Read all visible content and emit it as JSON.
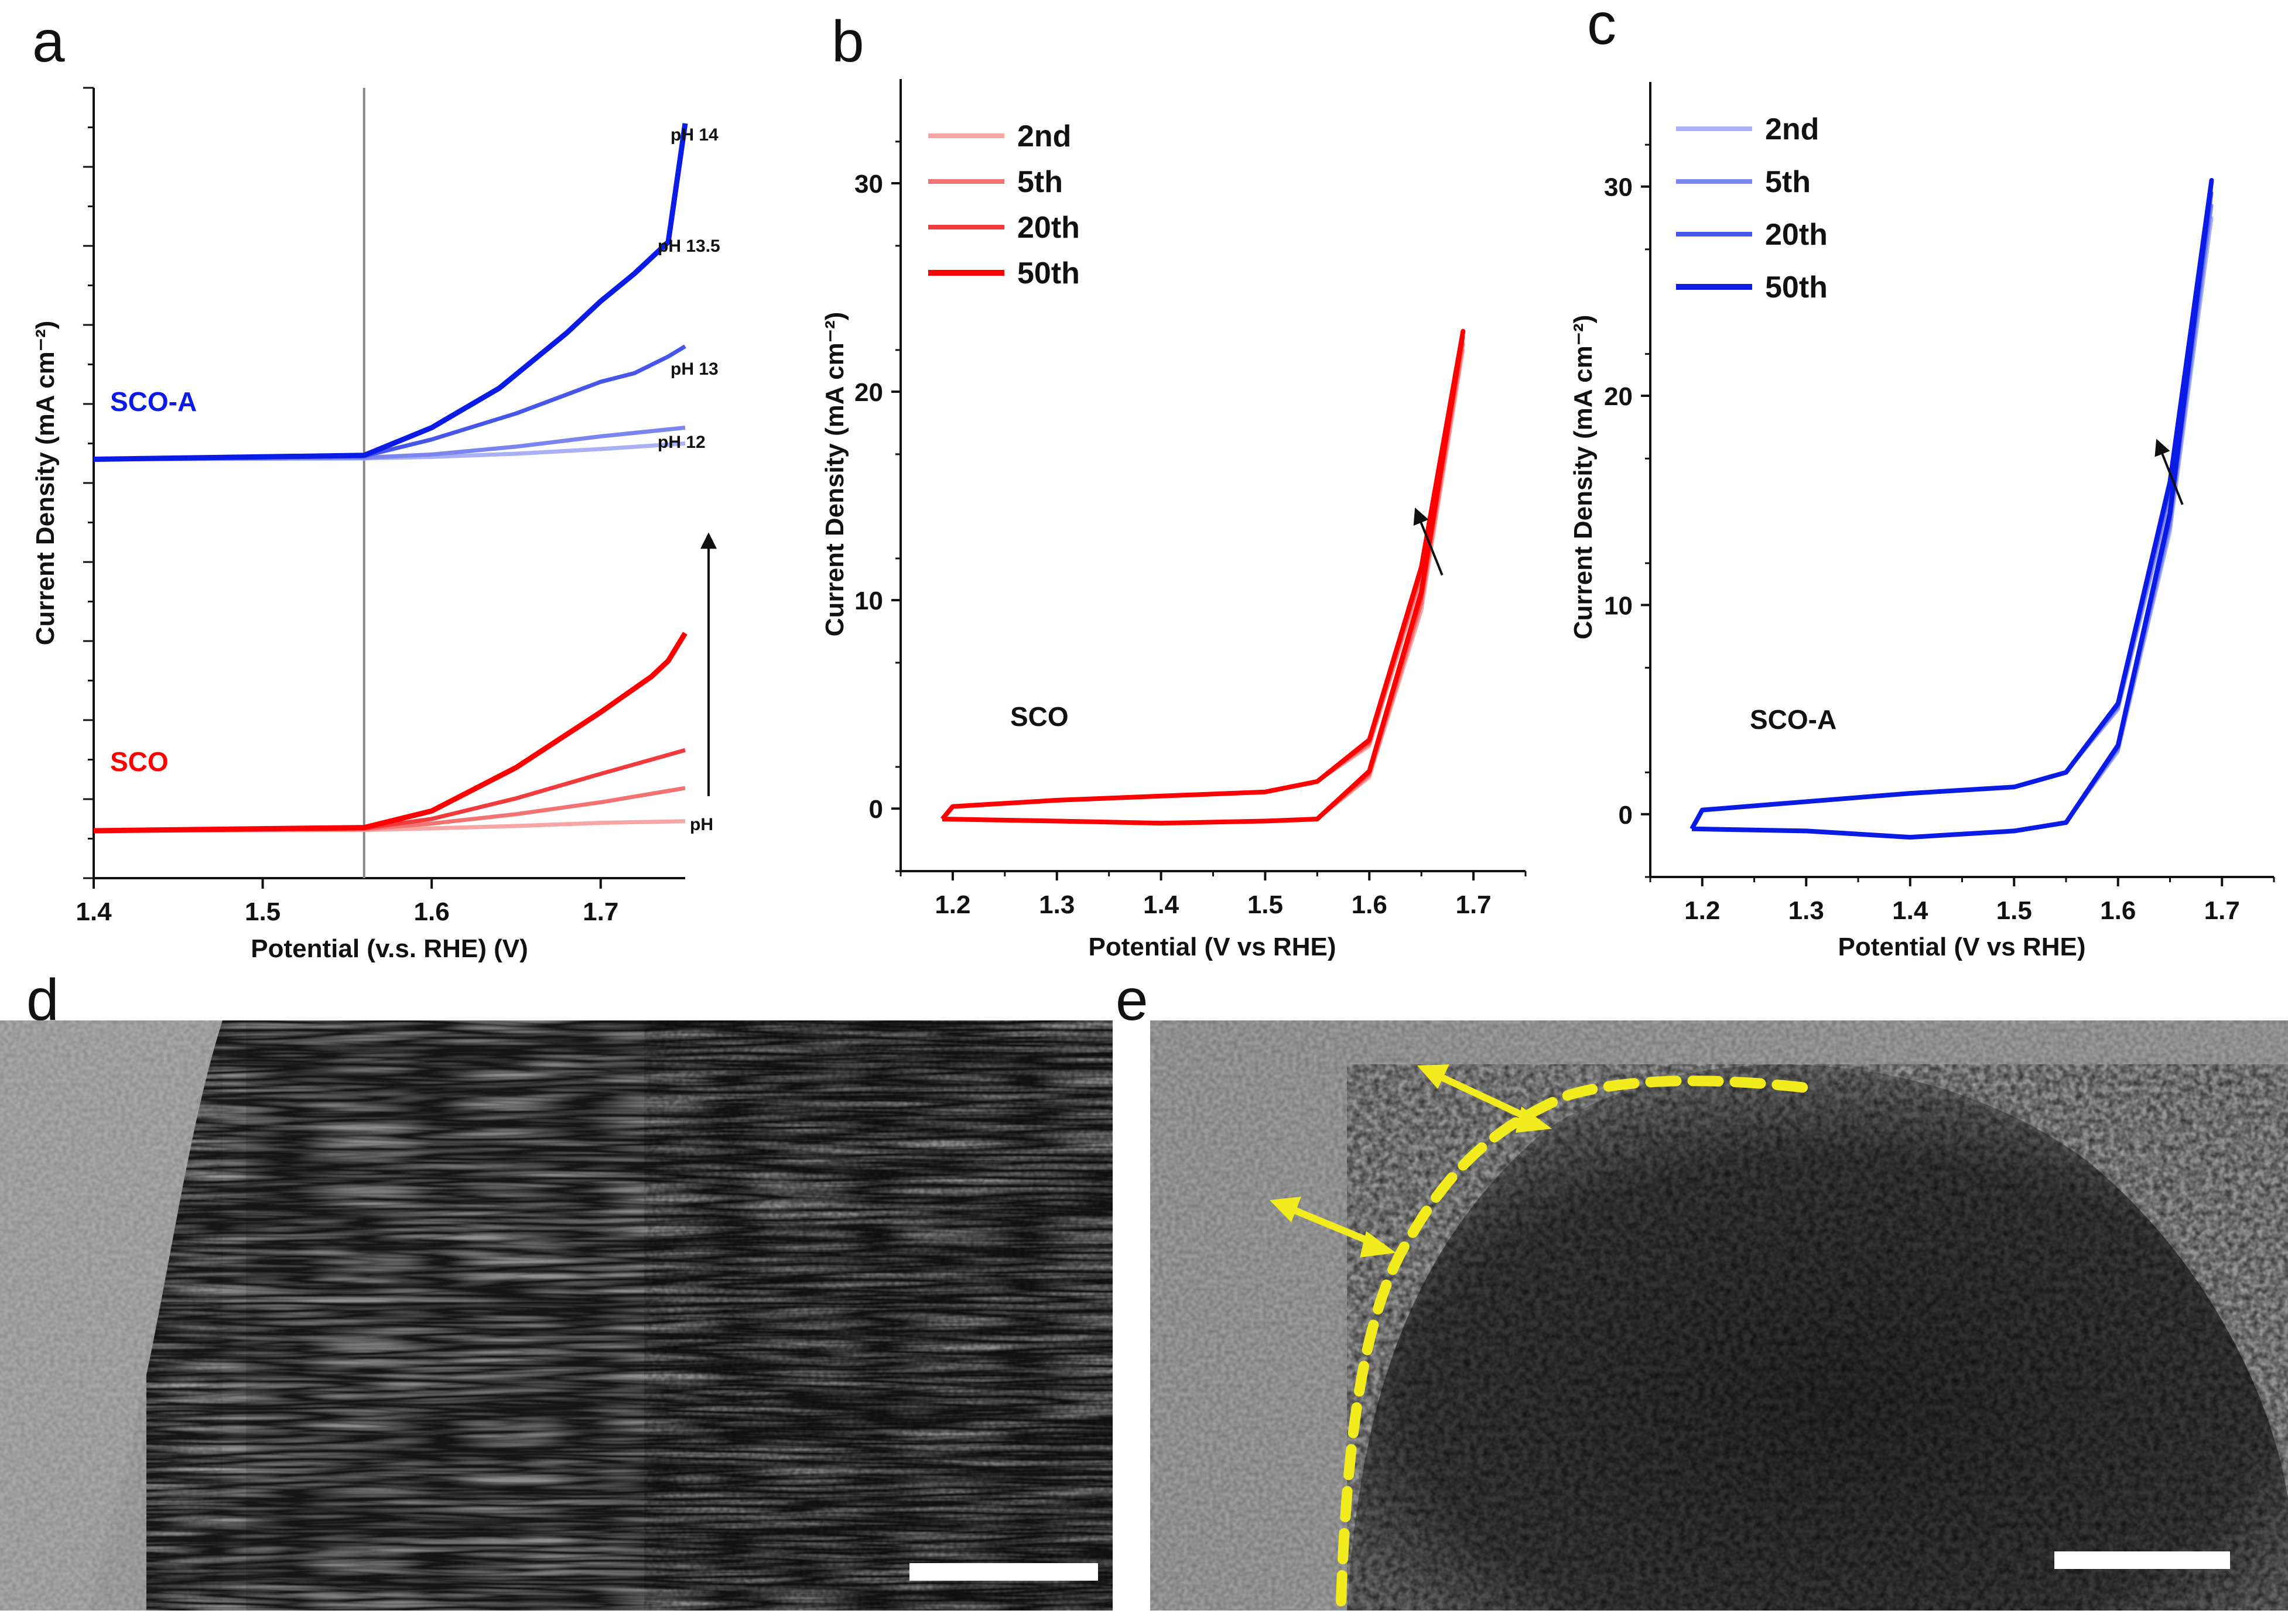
{
  "panel_labels": [
    "a",
    "b",
    "c",
    "d",
    "e"
  ],
  "colors": {
    "sco": "#ff0000",
    "sco_a": "#0a1be6",
    "sco_shades": [
      "#f7a5a5",
      "#f57272",
      "#f23a3a",
      "#ff0000"
    ],
    "sco_a_shades": [
      "#a9b0f5",
      "#7b85ef",
      "#4655ea",
      "#0a1be6"
    ],
    "dashed_boundary": "#f2ec1e",
    "scale_bar": "#ffffff"
  },
  "chart_data": [
    {
      "panel": "a",
      "type": "line",
      "xlabel": "Potential (v.s. RHE) (V)",
      "ylabel": "Current Density (mA cm⁻²)",
      "xlim": [
        1.4,
        1.75
      ],
      "xticks": [
        "1.4",
        "1.5",
        "1.6",
        "1.7"
      ],
      "ylim": [
        0,
        100
      ],
      "reference_line_x": 1.56,
      "groups": [
        {
          "name": "SCO-A",
          "baseline": 53,
          "series": [
            {
              "name": "pH 12",
              "x": [
                1.4,
                1.56,
                1.6,
                1.65,
                1.7,
                1.75
              ],
              "y": [
                53,
                53.1,
                53.3,
                53.7,
                54.3,
                55
              ]
            },
            {
              "name": "pH 13",
              "x": [
                1.4,
                1.56,
                1.6,
                1.65,
                1.7,
                1.75
              ],
              "y": [
                53,
                53.2,
                53.6,
                54.6,
                55.9,
                57
              ]
            },
            {
              "name": "pH 13.5",
              "x": [
                1.4,
                1.56,
                1.6,
                1.65,
                1.7,
                1.72,
                1.74,
                1.75
              ],
              "y": [
                53,
                53.4,
                55.5,
                58.8,
                62.8,
                63.9,
                66,
                67.3
              ]
            },
            {
              "name": "pH 14",
              "x": [
                1.4,
                1.56,
                1.6,
                1.64,
                1.68,
                1.7,
                1.72,
                1.73,
                1.74,
                1.75
              ],
              "y": [
                53,
                53.5,
                57,
                62,
                69,
                73,
                76.5,
                78.5,
                80.5,
                95.5
              ]
            }
          ]
        },
        {
          "name": "SCO",
          "baseline": 6,
          "series": [
            {
              "name": "pH 12",
              "x": [
                1.4,
                1.56,
                1.6,
                1.65,
                1.7,
                1.75
              ],
              "y": [
                6,
                6.1,
                6.3,
                6.6,
                7,
                7.2
              ]
            },
            {
              "name": "pH 13",
              "x": [
                1.4,
                1.56,
                1.6,
                1.65,
                1.7,
                1.75
              ],
              "y": [
                6,
                6.2,
                6.9,
                8.1,
                9.6,
                11.4
              ]
            },
            {
              "name": "pH 13.5",
              "x": [
                1.4,
                1.56,
                1.6,
                1.65,
                1.7,
                1.75
              ],
              "y": [
                6,
                6.3,
                7.5,
                10.1,
                13.2,
                16.2
              ]
            },
            {
              "name": "pH 14",
              "x": [
                1.4,
                1.56,
                1.6,
                1.65,
                1.7,
                1.72,
                1.73,
                1.74,
                1.75
              ],
              "y": [
                6,
                6.4,
                8.5,
                14,
                21,
                24,
                25.5,
                27.5,
                31
              ]
            }
          ]
        }
      ],
      "annotations": {
        "ph_labels": [
          "pH 14",
          "pH 13.5",
          "pH 13",
          "pH 12"
        ],
        "arrow_label": "pH"
      }
    },
    {
      "panel": "b",
      "type": "line",
      "sample": "SCO",
      "xlabel": "Potential (V vs RHE)",
      "ylabel": "Current Density (mA cm⁻²)",
      "xlim": [
        1.15,
        1.75
      ],
      "ylim": [
        -3,
        35
      ],
      "xticks": [
        "1.2",
        "1.3",
        "1.4",
        "1.5",
        "1.6",
        "1.7"
      ],
      "yticks": [
        "0",
        "10",
        "20",
        "30"
      ],
      "legend": [
        "2nd",
        "5th",
        "20th",
        "50th"
      ],
      "series": [
        {
          "name": "2nd",
          "x": [
            1.19,
            1.3,
            1.4,
            1.5,
            1.55,
            1.6,
            1.65,
            1.69,
            1.65,
            1.6,
            1.55,
            1.5,
            1.4,
            1.3,
            1.2,
            1.19
          ],
          "y": [
            -0.5,
            -0.6,
            -0.7,
            -0.6,
            -0.5,
            1.5,
            9.5,
            22,
            11,
            3,
            1.3,
            0.8,
            0.6,
            0.4,
            0.1,
            -0.5
          ]
        },
        {
          "name": "5th",
          "x": [
            1.19,
            1.3,
            1.4,
            1.5,
            1.55,
            1.6,
            1.65,
            1.69,
            1.65,
            1.6,
            1.55,
            1.5,
            1.4,
            1.3,
            1.2,
            1.19
          ],
          "y": [
            -0.5,
            -0.6,
            -0.7,
            -0.6,
            -0.5,
            1.6,
            9.8,
            22.3,
            11.2,
            3.1,
            1.3,
            0.8,
            0.6,
            0.4,
            0.1,
            -0.5
          ]
        },
        {
          "name": "20th",
          "x": [
            1.19,
            1.3,
            1.4,
            1.5,
            1.55,
            1.6,
            1.65,
            1.69,
            1.65,
            1.6,
            1.55,
            1.5,
            1.4,
            1.3,
            1.2,
            1.19
          ],
          "y": [
            -0.5,
            -0.6,
            -0.7,
            -0.6,
            -0.5,
            1.7,
            10.1,
            22.6,
            11.4,
            3.2,
            1.3,
            0.8,
            0.6,
            0.4,
            0.1,
            -0.5
          ]
        },
        {
          "name": "50th",
          "x": [
            1.19,
            1.3,
            1.4,
            1.5,
            1.55,
            1.6,
            1.65,
            1.69,
            1.65,
            1.6,
            1.55,
            1.5,
            1.4,
            1.3,
            1.2,
            1.19
          ],
          "y": [
            -0.5,
            -0.6,
            -0.7,
            -0.6,
            -0.5,
            1.8,
            10.4,
            22.9,
            11.6,
            3.3,
            1.3,
            0.8,
            0.6,
            0.4,
            0.1,
            -0.5
          ]
        }
      ],
      "annotations": {
        "sample_label": "SCO",
        "arrow": {
          "from": [
            1.67,
            11.2
          ],
          "to": [
            1.645,
            14.3
          ]
        }
      }
    },
    {
      "panel": "c",
      "type": "line",
      "sample": "SCO-A",
      "xlabel": "Potential (V vs RHE)",
      "ylabel": "Current Density (mA cm⁻²)",
      "xlim": [
        1.15,
        1.75
      ],
      "ylim": [
        -3,
        35
      ],
      "xticks": [
        "1.2",
        "1.3",
        "1.4",
        "1.5",
        "1.6",
        "1.7"
      ],
      "yticks": [
        "0",
        "10",
        "20",
        "30"
      ],
      "legend": [
        "2nd",
        "5th",
        "20th",
        "50th"
      ],
      "series": [
        {
          "name": "2nd",
          "x": [
            1.19,
            1.3,
            1.4,
            1.5,
            1.55,
            1.6,
            1.65,
            1.69,
            1.65,
            1.6,
            1.55,
            1.5,
            1.4,
            1.3,
            1.2,
            1.19
          ],
          "y": [
            -0.7,
            -0.8,
            -1.1,
            -0.8,
            -0.4,
            3,
            13.5,
            28.5,
            15,
            5,
            2,
            1.3,
            1,
            0.6,
            0.2,
            -0.7
          ]
        },
        {
          "name": "5th",
          "x": [
            1.19,
            1.3,
            1.4,
            1.5,
            1.55,
            1.6,
            1.65,
            1.69,
            1.65,
            1.6,
            1.55,
            1.5,
            1.4,
            1.3,
            1.2,
            1.19
          ],
          "y": [
            -0.7,
            -0.8,
            -1.1,
            -0.8,
            -0.4,
            3.1,
            13.8,
            29.1,
            15.3,
            5.1,
            2,
            1.3,
            1,
            0.6,
            0.2,
            -0.7
          ]
        },
        {
          "name": "20th",
          "x": [
            1.19,
            1.3,
            1.4,
            1.5,
            1.55,
            1.6,
            1.65,
            1.69,
            1.65,
            1.6,
            1.55,
            1.5,
            1.4,
            1.3,
            1.2,
            1.19
          ],
          "y": [
            -0.7,
            -0.8,
            -1.1,
            -0.8,
            -0.4,
            3.2,
            14.1,
            29.7,
            15.6,
            5.2,
            2,
            1.3,
            1,
            0.6,
            0.2,
            -0.7
          ]
        },
        {
          "name": "50th",
          "x": [
            1.19,
            1.3,
            1.4,
            1.5,
            1.55,
            1.6,
            1.65,
            1.69,
            1.65,
            1.6,
            1.55,
            1.5,
            1.4,
            1.3,
            1.2,
            1.19
          ],
          "y": [
            -0.7,
            -0.8,
            -1.1,
            -0.8,
            -0.4,
            3.3,
            14.4,
            30.3,
            15.9,
            5.3,
            2,
            1.3,
            1,
            0.6,
            0.2,
            -0.7
          ]
        }
      ],
      "annotations": {
        "sample_label": "SCO-A",
        "arrow": {
          "from": [
            1.662,
            14.8
          ],
          "to": [
            1.638,
            17.8
          ]
        }
      }
    }
  ],
  "micrographs": [
    {
      "panel": "d",
      "description_icon": "tem-image-lattice-fringes",
      "scale_bar": true
    },
    {
      "panel": "e",
      "description_icon": "tem-image-core-shell",
      "scale_bar": true,
      "dashed_boundary": true,
      "arrows": 2
    }
  ]
}
